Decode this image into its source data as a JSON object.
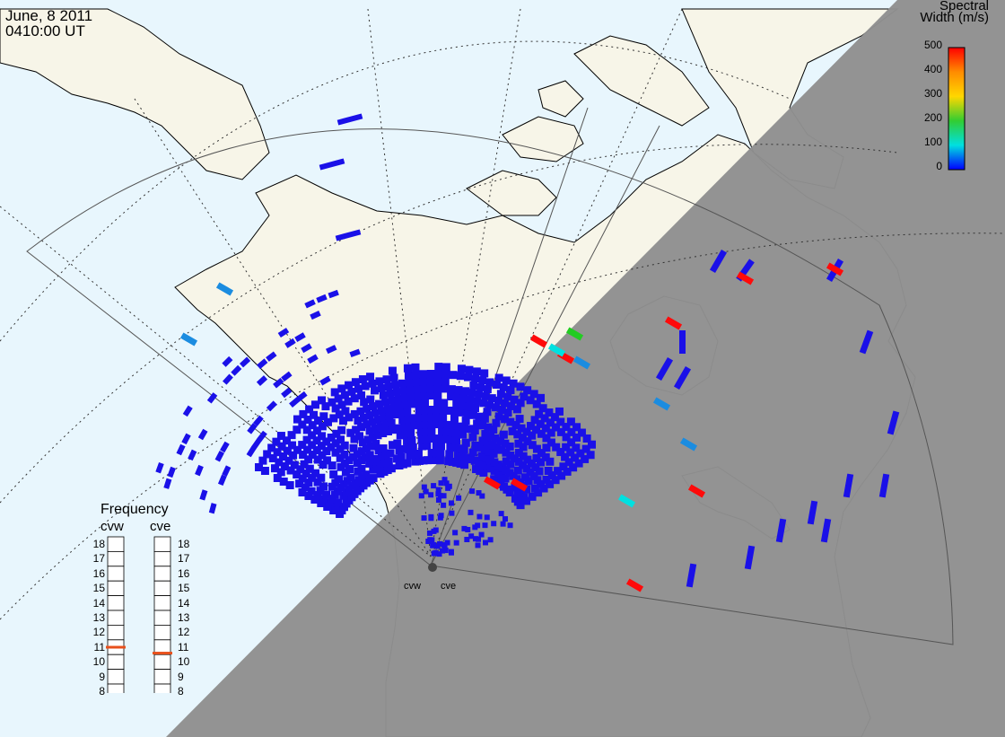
{
  "header": {
    "date": "June, 8 2011",
    "time": "0410:00 UT"
  },
  "colorbar": {
    "title_line1": "Spectral",
    "title_line2": "Width (m/s)",
    "ticks": [
      "500",
      "400",
      "300",
      "200",
      "100",
      "0"
    ],
    "colors": [
      "#ff0000",
      "#ff8c00",
      "#ffd700",
      "#32cd32",
      "#00e0e0",
      "#0000ff"
    ]
  },
  "frequency_panel": {
    "title": "Frequency",
    "radars": [
      {
        "name": "cvw",
        "value": 11
      },
      {
        "name": "cve",
        "value": 10.6
      }
    ],
    "scale": [
      "18",
      "17",
      "16",
      "15",
      "14",
      "13",
      "12",
      "11",
      "10",
      "9",
      "8"
    ],
    "marker_color": "#e8501c"
  },
  "sites": {
    "west": "cvw",
    "east": "cve"
  },
  "map_colors": {
    "ocean": "#e8f6fd",
    "land": "#f7f5e8",
    "night": "#8f8f8f",
    "echo_low": "#1a10e8",
    "echo_mid": "#1b8ce0",
    "echo_high": "#ff0a0a"
  }
}
